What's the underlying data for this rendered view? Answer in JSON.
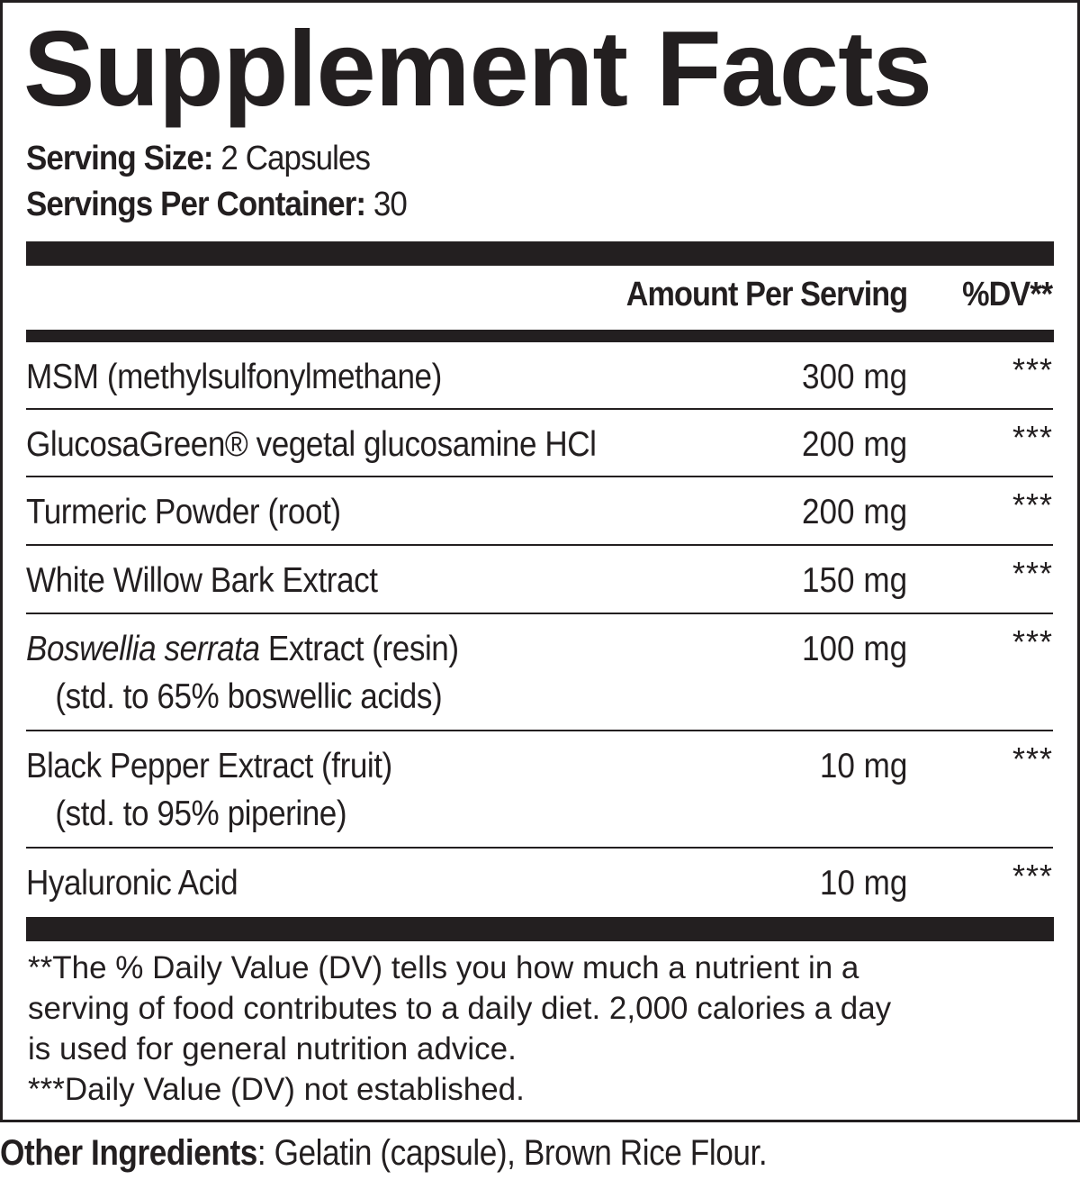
{
  "title": "Supplement Facts",
  "serving_size": {
    "label": "Serving Size:",
    "value": "2 Capsules"
  },
  "servings_per_container": {
    "label": "Servings Per Container:",
    "value": "30"
  },
  "header": {
    "amount": "Amount Per Serving",
    "dv": "%DV**"
  },
  "rows": [
    {
      "name": "MSM (methylsulfonylmethane)",
      "sub": "",
      "amount": "300 mg",
      "dv": "***"
    },
    {
      "name": "GlucosaGreen® vegetal glucosamine HCl",
      "sub": "",
      "amount": "200 mg",
      "dv": "***"
    },
    {
      "name": "Turmeric Powder (root)",
      "sub": "",
      "amount": "200 mg",
      "dv": "***"
    },
    {
      "name": "White Willow Bark Extract",
      "sub": "",
      "amount": "150 mg",
      "dv": "***"
    },
    {
      "name_italic": "Boswellia serrata",
      "name": " Extract (resin)",
      "sub": "(std. to 65% boswellic acids)",
      "amount": "100 mg",
      "dv": "***"
    },
    {
      "name": "Black Pepper Extract (fruit)",
      "sub": "(std. to 95% piperine)",
      "amount": "10 mg",
      "dv": "***"
    },
    {
      "name": "Hyaluronic Acid",
      "sub": "",
      "amount": "10 mg",
      "dv": "***"
    }
  ],
  "footnotes": [
    "**The % Daily Value (DV) tells you how much a nutrient in a",
    "serving of food contributes to a daily diet. 2,000 calories a day",
    "is used for general nutrition advice.",
    "***Daily Value (DV) not established."
  ],
  "other_ingredients": {
    "label": "Other Ingredients",
    "value": ": Gelatin (capsule), Brown Rice Flour."
  }
}
